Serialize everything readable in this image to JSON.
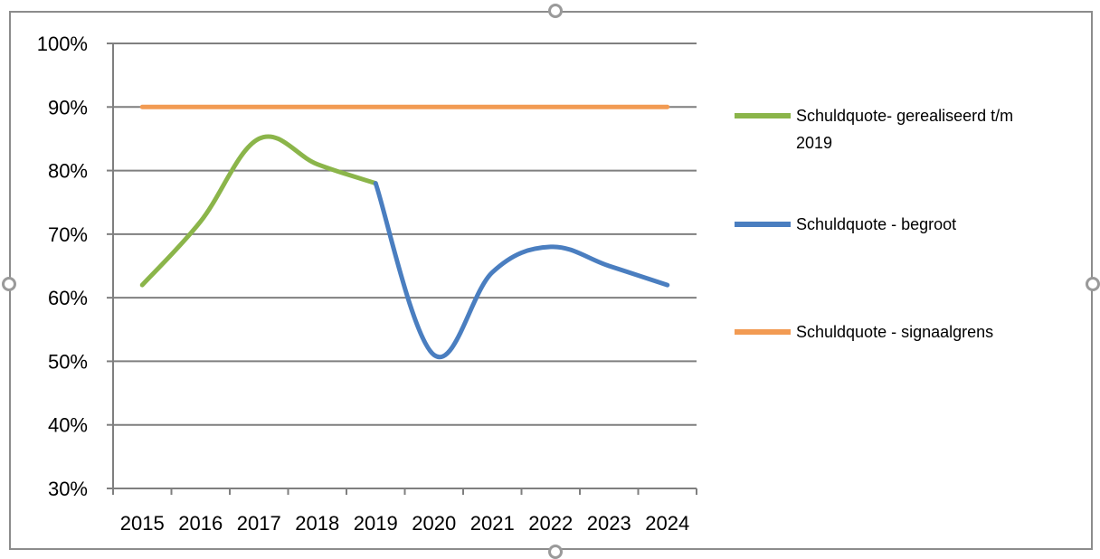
{
  "chart_data": {
    "type": "line",
    "x": [
      "2015",
      "2016",
      "2017",
      "2018",
      "2019",
      "2020",
      "2021",
      "2022",
      "2023",
      "2024"
    ],
    "ylim": [
      0.3,
      1.0
    ],
    "yticks": [
      "30%",
      "40%",
      "50%",
      "60%",
      "70%",
      "80%",
      "90%",
      "100%"
    ],
    "grid": true,
    "legend_position": "right",
    "series": [
      {
        "name": "Schuldquote- gerealiseerd t/m 2019",
        "color": "#8bb54a",
        "x": [
          "2015",
          "2016",
          "2017",
          "2018",
          "2019"
        ],
        "values": [
          0.62,
          0.72,
          0.85,
          0.81,
          0.78
        ]
      },
      {
        "name": "Schuldquote - begroot",
        "color": "#4a7ec0",
        "x": [
          "2019",
          "2020",
          "2021",
          "2022",
          "2023",
          "2024"
        ],
        "values": [
          0.78,
          0.51,
          0.64,
          0.68,
          0.65,
          0.62
        ]
      },
      {
        "name": "Schuldquote - signaalgrens",
        "color": "#f29b53",
        "x": [
          "2015",
          "2016",
          "2017",
          "2018",
          "2019",
          "2020",
          "2021",
          "2022",
          "2023",
          "2024"
        ],
        "values": [
          0.9,
          0.9,
          0.9,
          0.9,
          0.9,
          0.9,
          0.9,
          0.9,
          0.9,
          0.9
        ]
      }
    ],
    "legend_lines": [
      [
        "Schuldquote- gerealiseerd t/m",
        "2019"
      ],
      [
        "Schuldquote - begroot"
      ],
      [
        "Schuldquote - signaalgrens"
      ]
    ]
  }
}
